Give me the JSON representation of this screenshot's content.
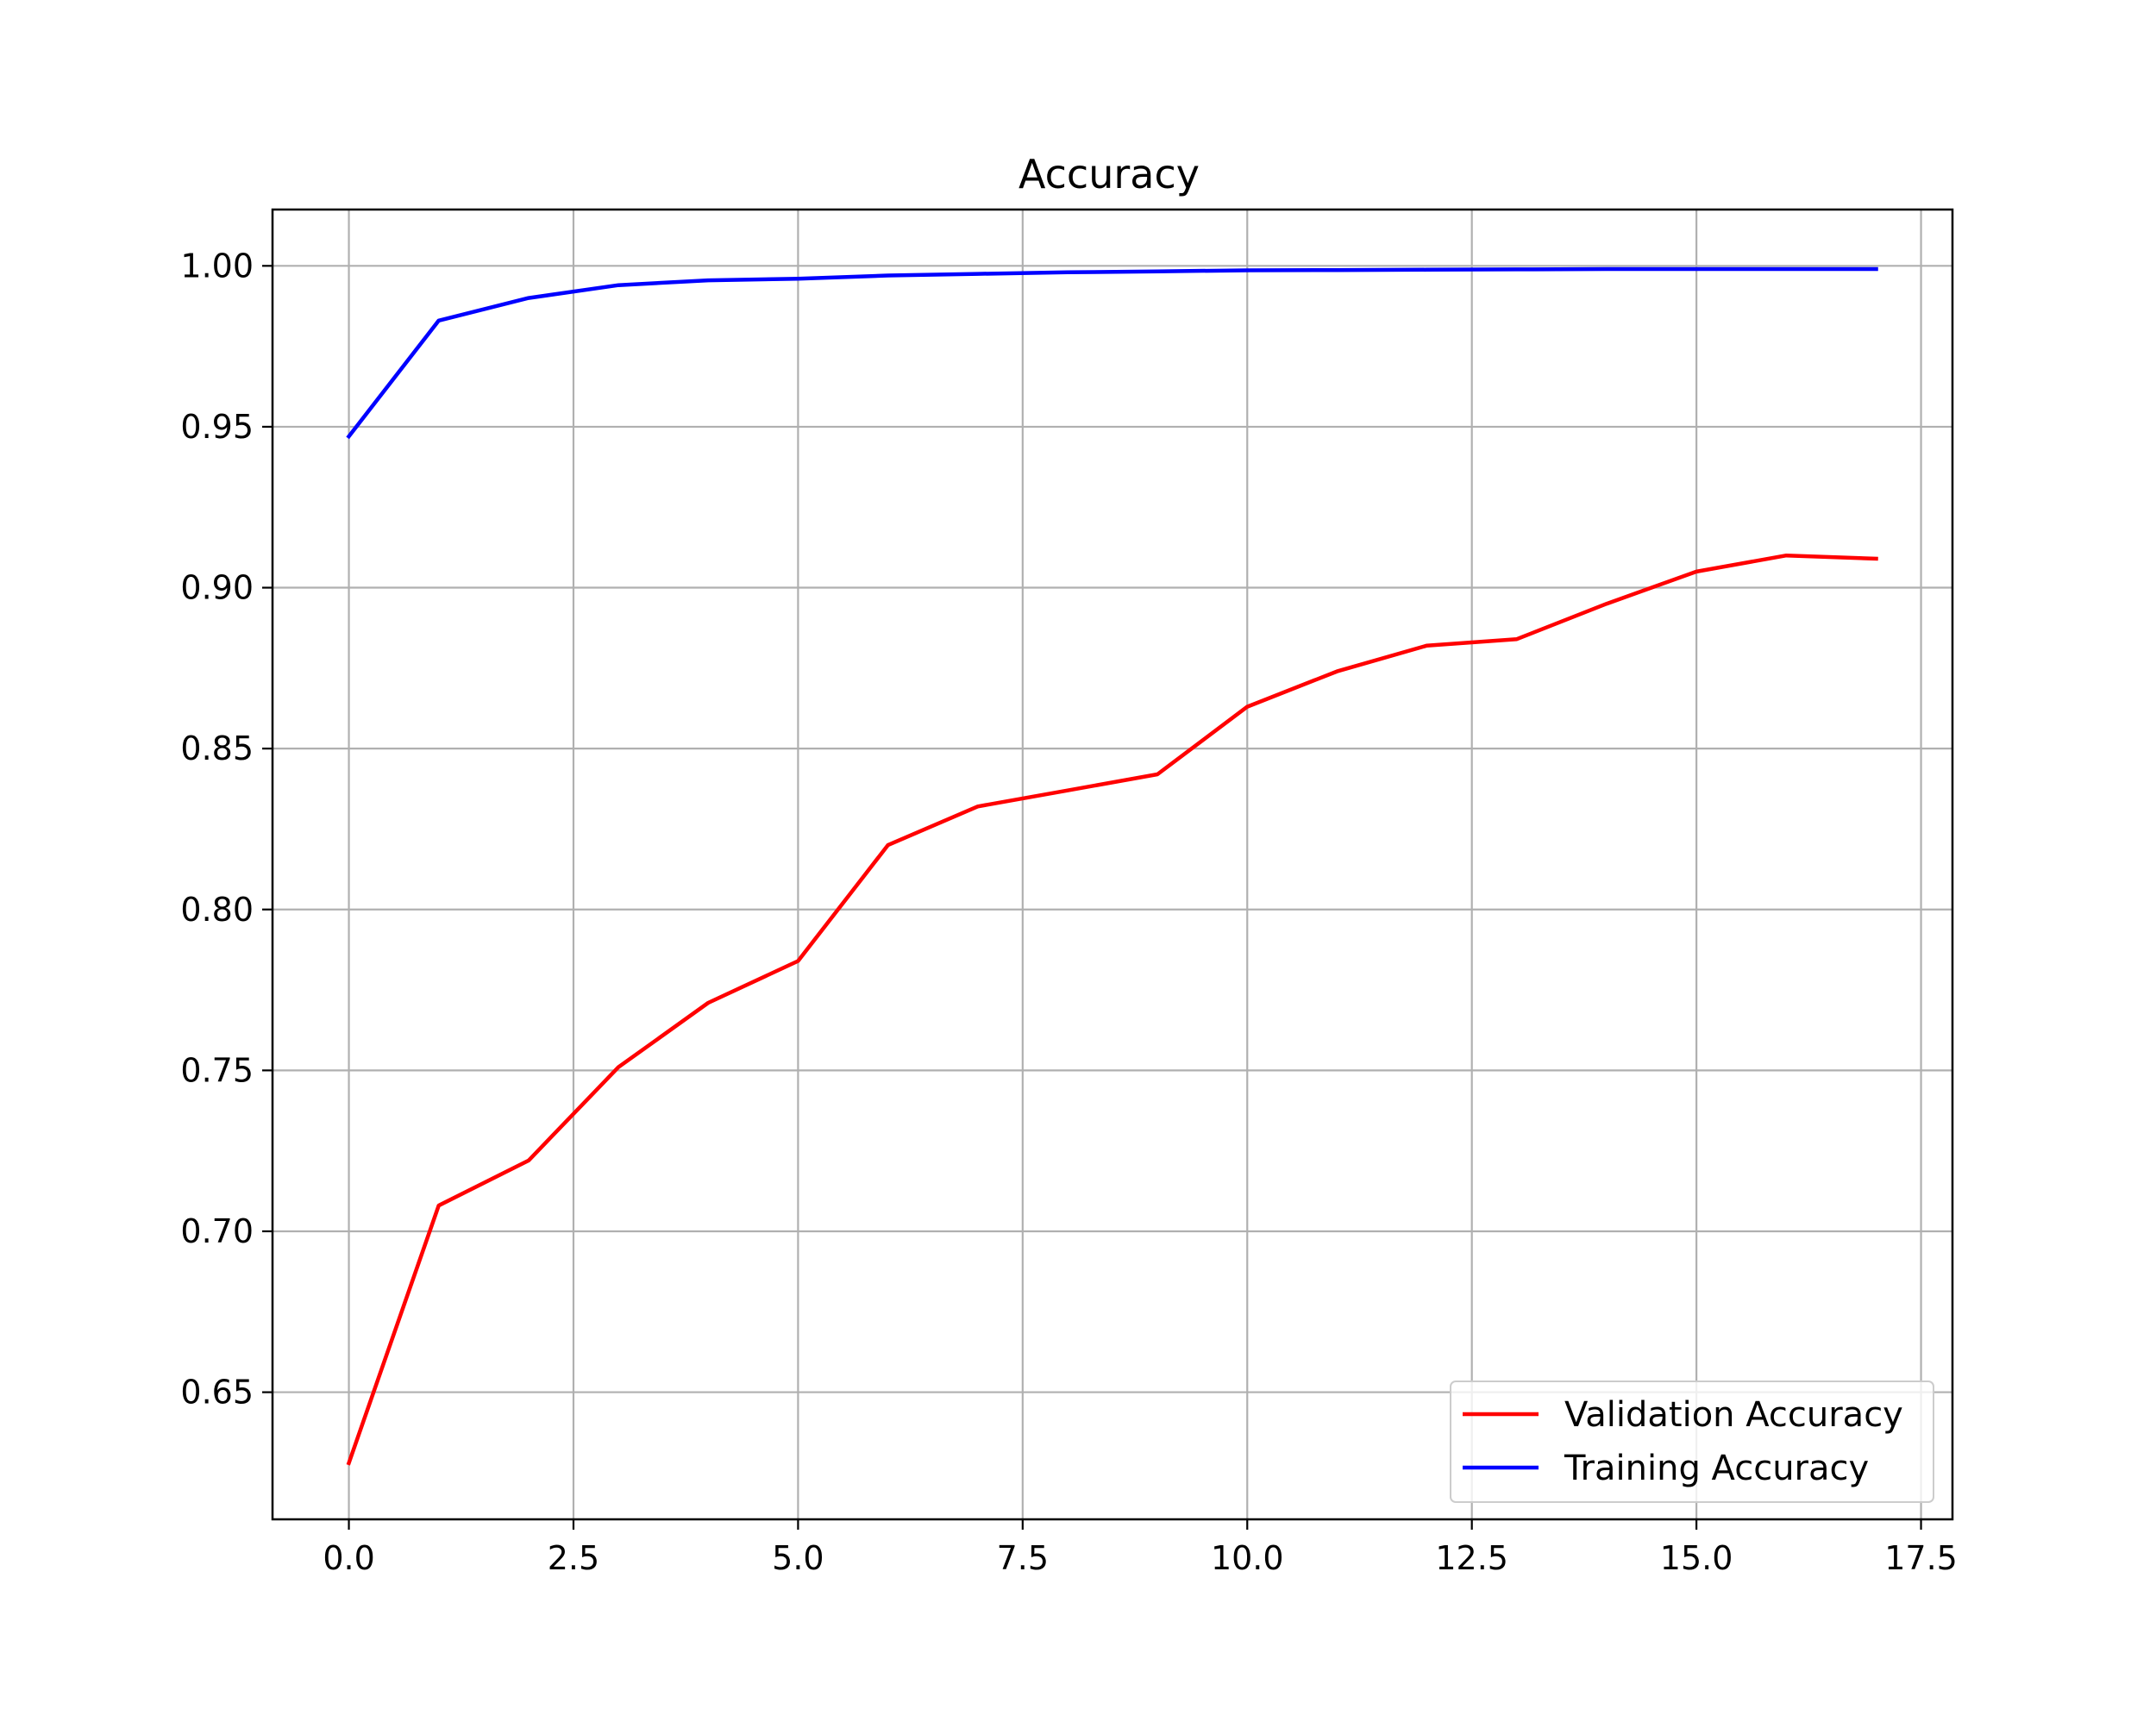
{
  "chart_data": {
    "type": "line",
    "title": "Accuracy",
    "xlabel": "",
    "ylabel": "",
    "xlim": [
      -0.85,
      17.85
    ],
    "ylim": [
      0.6105,
      1.0175
    ],
    "xticks": [
      0.0,
      2.5,
      5.0,
      7.5,
      10.0,
      12.5,
      15.0,
      17.5
    ],
    "xtick_labels": [
      "0.0",
      "2.5",
      "5.0",
      "7.5",
      "10.0",
      "12.5",
      "15.0",
      "17.5"
    ],
    "yticks": [
      0.65,
      0.7,
      0.75,
      0.8,
      0.85,
      0.9,
      0.95,
      1.0
    ],
    "ytick_labels": [
      "0.65",
      "0.70",
      "0.75",
      "0.80",
      "0.85",
      "0.90",
      "0.95",
      "1.00"
    ],
    "grid": true,
    "legend_position": "lower-right",
    "x": [
      0,
      1,
      2,
      3,
      4,
      5,
      6,
      7,
      8,
      9,
      10,
      11,
      12,
      13,
      14,
      15,
      16,
      17
    ],
    "series": [
      {
        "name": "Validation Accuracy",
        "color": "#ff0000",
        "values": [
          0.628,
          0.708,
          0.722,
          0.751,
          0.771,
          0.784,
          0.82,
          0.832,
          0.837,
          0.842,
          0.863,
          0.874,
          0.882,
          0.884,
          0.895,
          0.905,
          0.91,
          0.909
        ]
      },
      {
        "name": "Training Accuracy",
        "color": "#0000ff",
        "values": [
          0.947,
          0.983,
          0.99,
          0.994,
          0.9955,
          0.996,
          0.997,
          0.9975,
          0.998,
          0.9983,
          0.9986,
          0.9987,
          0.9988,
          0.9989,
          0.999,
          0.999,
          0.999,
          0.999
        ]
      }
    ]
  }
}
